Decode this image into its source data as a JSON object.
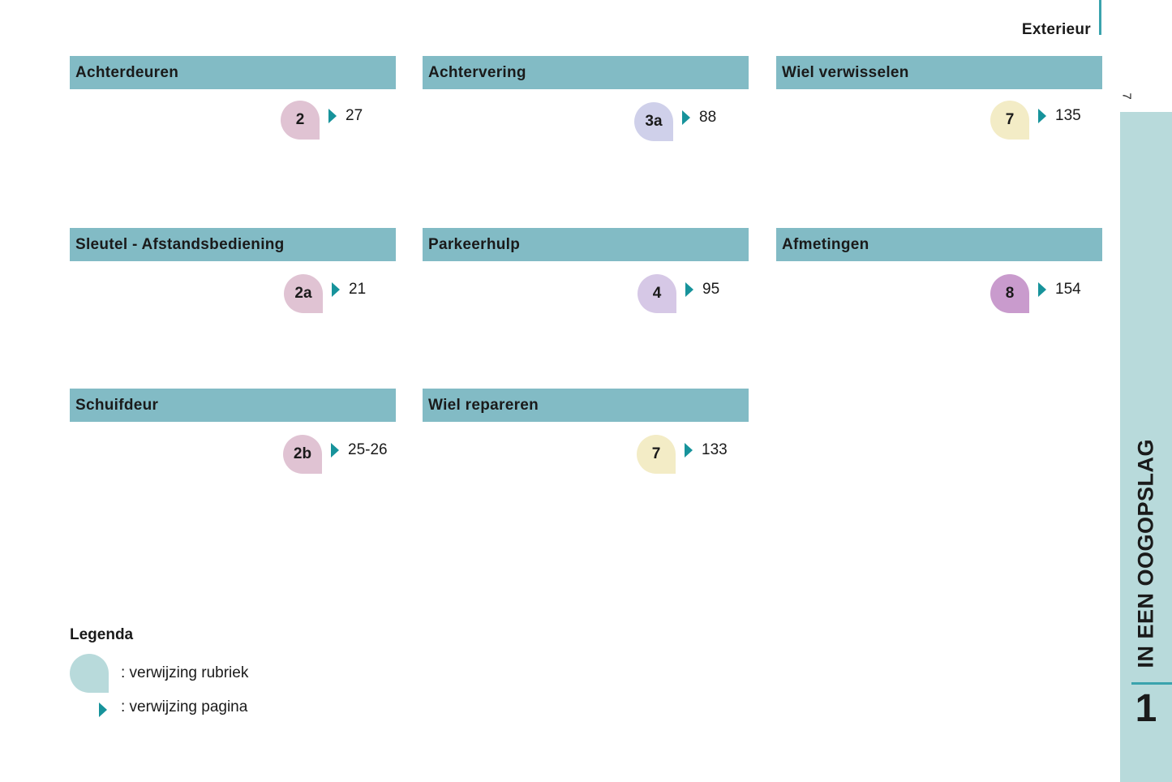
{
  "header": {
    "title": "Exterieur",
    "page_number": "7"
  },
  "side_tab": {
    "chapter_title": "IN EEN OOGOPSLAG",
    "chapter_number": "1"
  },
  "colors": {
    "bar": "#82bbc5",
    "accent": "#17939b",
    "side_tab": "#b8dadb",
    "pink": "#e0c3d3",
    "lavender": "#cfd0ea",
    "cream": "#f3ecc6",
    "light_purple": "#d6c8e6",
    "purple": "#c99bcd"
  },
  "sections": [
    {
      "title": "Achterdeuren",
      "ref": "2",
      "page": "27",
      "color": "pink"
    },
    {
      "title": "Achtervering",
      "ref": "3a",
      "page": "88",
      "color": "lavender"
    },
    {
      "title": "Wiel verwisselen",
      "ref": "7",
      "page": "135",
      "color": "cream"
    },
    {
      "title": "Sleutel - Afstandsbediening",
      "ref": "2a",
      "page": "21",
      "color": "pink"
    },
    {
      "title": "Parkeerhulp",
      "ref": "4",
      "page": "95",
      "color": "light_purple"
    },
    {
      "title": "Afmetingen",
      "ref": "8",
      "page": "154",
      "color": "purple"
    },
    {
      "title": "Schuifdeur",
      "ref": "2b",
      "page": "25-26",
      "color": "pink"
    },
    {
      "title": "Wiel repareren",
      "ref": "7",
      "page": "133",
      "color": "cream"
    }
  ],
  "legend": {
    "title": "Legenda",
    "section_ref_label": ": verwijzing rubriek",
    "page_ref_label": ": verwijzing pagina",
    "section_icon": "teardrop-icon",
    "page_icon": "triangle-arrow-icon"
  }
}
